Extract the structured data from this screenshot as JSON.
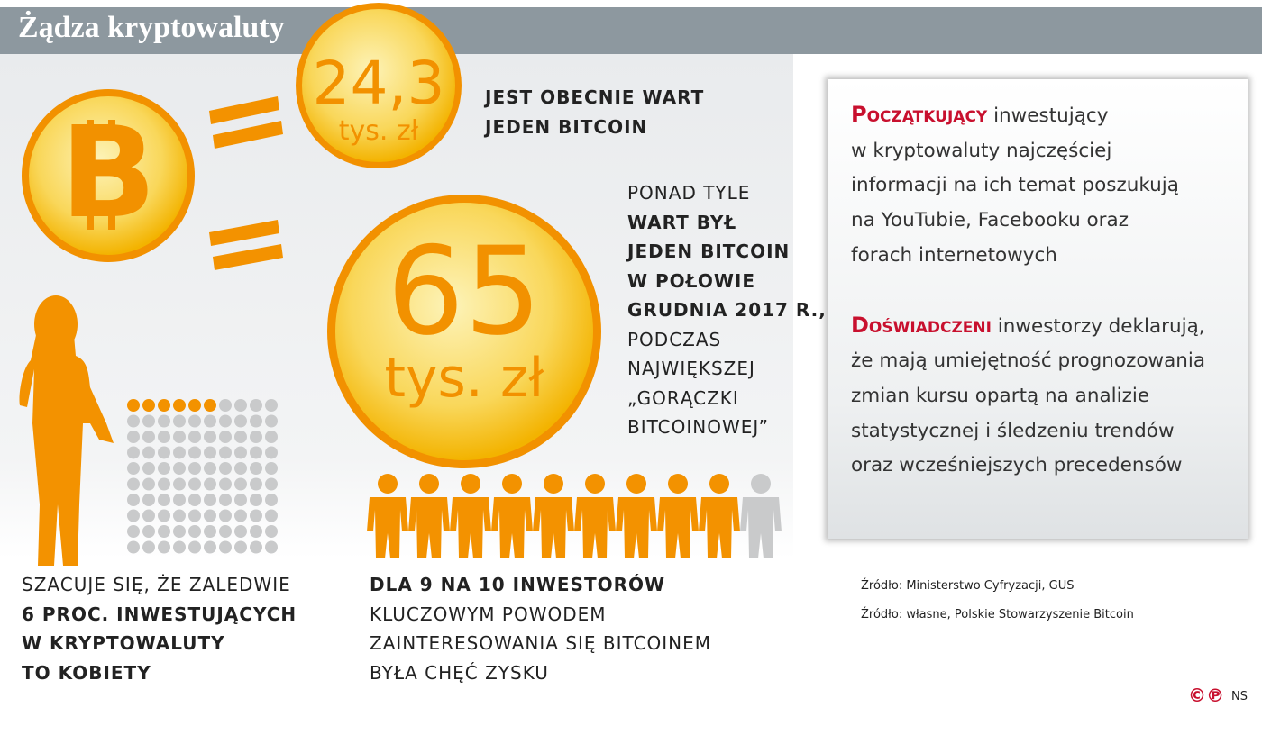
{
  "header": {
    "title": "Żądza kryptowaluty"
  },
  "coin_current": {
    "value": "24,3",
    "unit": "tys. zł",
    "caption": [
      "JEST OBECNIE WART",
      "JEDEN BITCOIN"
    ]
  },
  "coin_peak": {
    "value": "65",
    "unit": "tys. zł",
    "caption_top": "PONAD TYLE",
    "caption_bold": [
      "WART BYŁ",
      "JEDEN BITCOIN",
      "W POŁOWIE",
      "GRUDNIA 2017 R.,"
    ],
    "caption_rest": [
      "PODCZAS",
      "NAJWIĘKSZEJ",
      "„GORĄCZKI",
      "BITCOINOWEJ”"
    ]
  },
  "women": {
    "dots_total": 100,
    "dots_highlighted": 6,
    "lead": "SZACUJE SIĘ, ŻE ZALEDWIE",
    "bold": [
      "6 PROC. INWESTUJĄCYCH",
      "W KRYPTOWALUTY",
      "TO KOBIETY"
    ]
  },
  "investors": {
    "people_total": 10,
    "people_highlighted": 9,
    "bold": "DLA 9 NA 10 INWESTORÓW",
    "rest": [
      "KLUCZOWYM POWODEM",
      "ZAINTERESOWANIA SIĘ BITCOINEM",
      "BYŁA CHĘĆ ZYSKU"
    ]
  },
  "box": {
    "paragraphs": [
      {
        "keyword": "Początkujący",
        "lines": [
          "inwestujący",
          "w kryptowaluty najczęściej",
          "informacji na ich temat poszukują",
          "na YouTubie, Facebooku oraz",
          "forach internetowych"
        ]
      },
      {
        "keyword": "Doświadczeni",
        "lines": [
          "inwestorzy deklarują,",
          "że mają umiejętność prognozowania",
          "zmian kursu opartą na analizie",
          "statystycznej i śledzeniu trendów",
          "oraz wcześniejszych precedensów"
        ]
      }
    ]
  },
  "sources": [
    "Źródło: Ministerstwo Cyfryzacji, GUS",
    "Źródło: własne, Polskie Stowarzyszenie Bitcoin"
  ],
  "footer": {
    "copyright": "©℗",
    "author": "NS"
  }
}
